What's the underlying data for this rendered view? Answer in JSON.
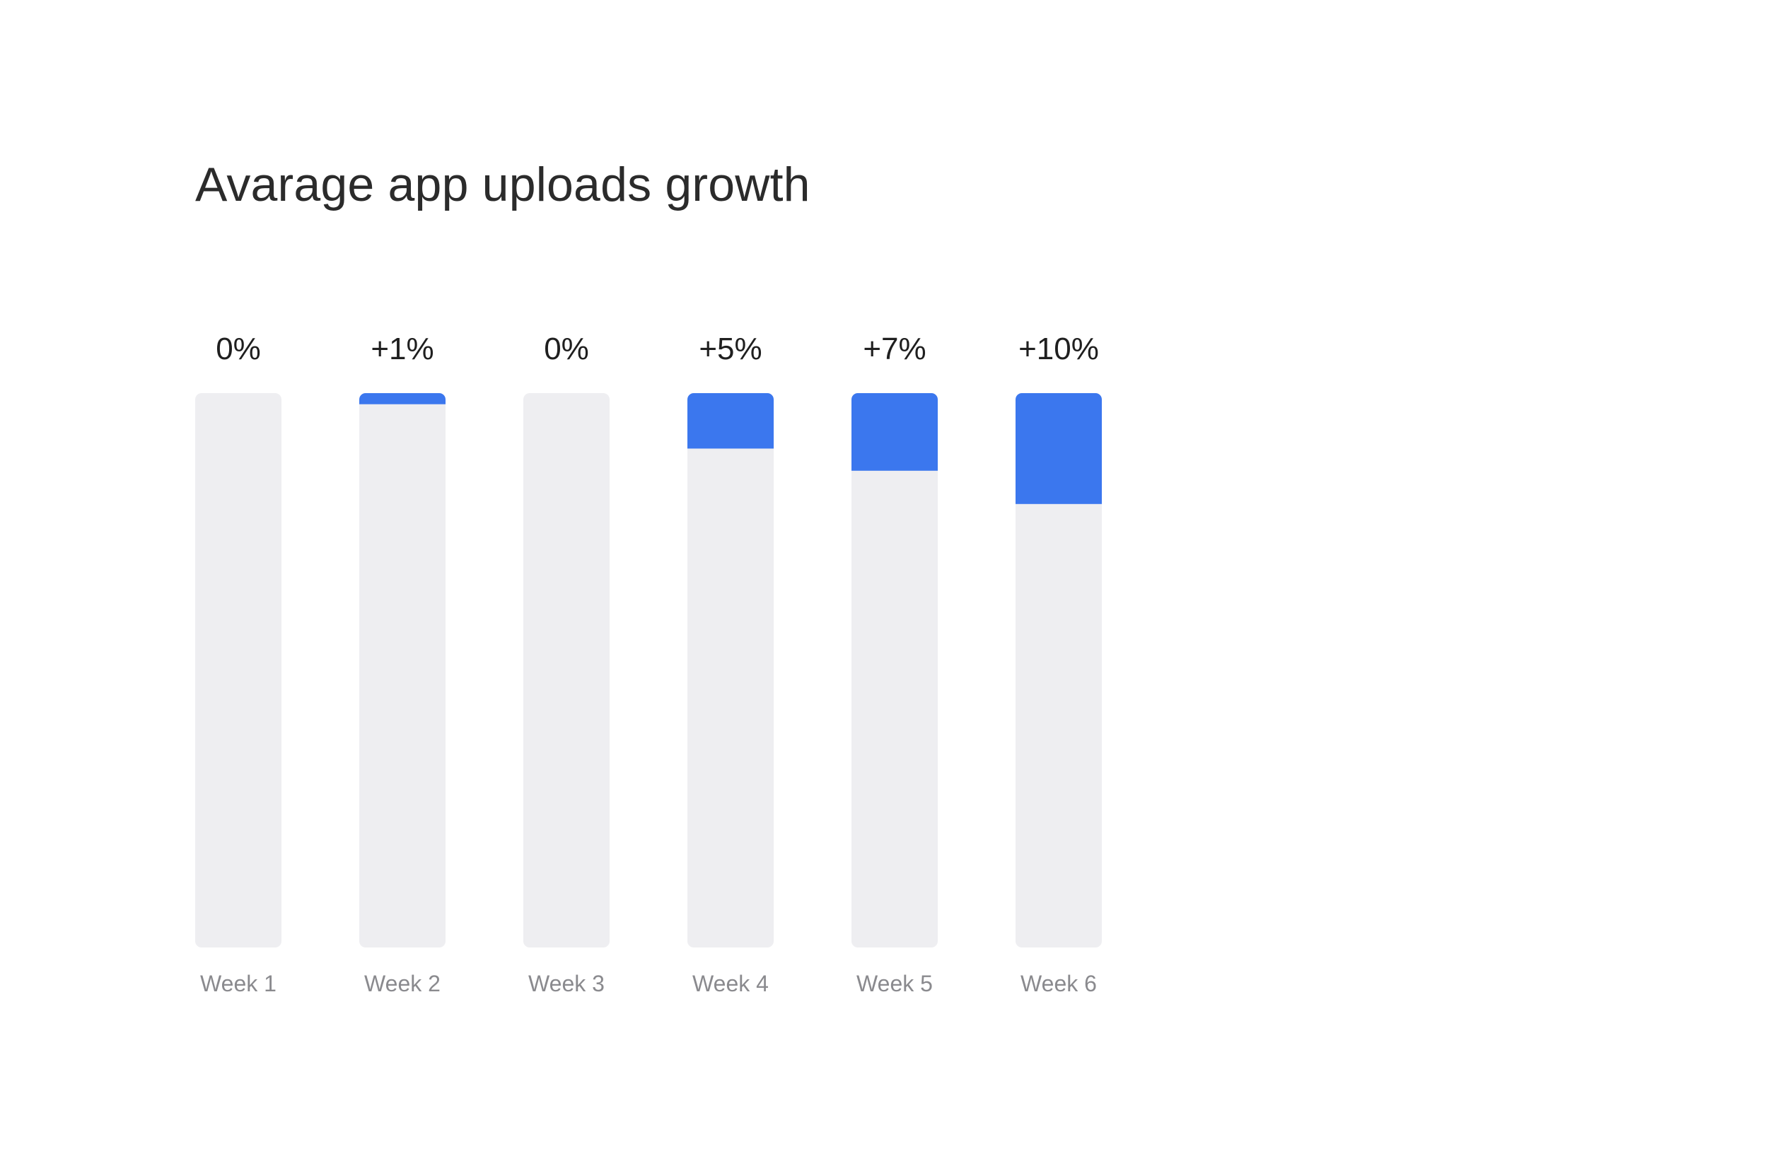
{
  "chart_data": {
    "type": "bar",
    "title": "Avarage app uploads growth",
    "categories": [
      "Week 1",
      "Week 2",
      "Week 3",
      "Week 4",
      "Week 5",
      "Week 6"
    ],
    "values": [
      0,
      1,
      0,
      5,
      7,
      10
    ],
    "value_labels": [
      "0%",
      "+1%",
      "0%",
      "+5%",
      "+7%",
      "+10%"
    ],
    "value_unit": "%",
    "ylim": [
      0,
      50
    ],
    "grid": false,
    "legend": "none",
    "colors": {
      "fill": "#3b77ee",
      "track": "#eeeef1",
      "value_text": "#1f1f1f",
      "category_text": "#8a8a8e",
      "title_text": "#2b2b2b"
    }
  }
}
